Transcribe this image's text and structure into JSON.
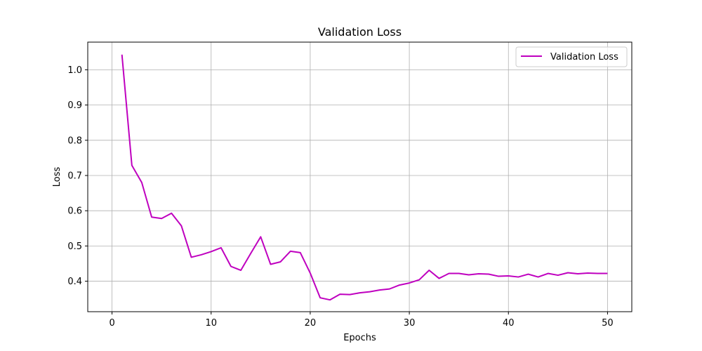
{
  "chart_data": {
    "type": "line",
    "title": "Validation Loss",
    "xlabel": "Epochs",
    "ylabel": "Loss",
    "xlim": [
      -2.45,
      52.45
    ],
    "ylim": [
      0.3135,
      1.0785
    ],
    "xticks": [
      0,
      10,
      20,
      30,
      40,
      50
    ],
    "yticks": [
      0.4,
      0.5,
      0.6,
      0.7,
      0.8,
      0.9,
      1.0
    ],
    "grid": true,
    "legend_position": "top-right",
    "series": [
      {
        "name": "Validation Loss",
        "color": "#bf00bf",
        "x": [
          1,
          2,
          3,
          4,
          5,
          6,
          7,
          8,
          9,
          10,
          11,
          12,
          13,
          14,
          15,
          16,
          17,
          18,
          19,
          20,
          21,
          22,
          23,
          24,
          25,
          26,
          27,
          28,
          29,
          30,
          31,
          32,
          33,
          34,
          35,
          36,
          37,
          38,
          39,
          40,
          41,
          42,
          43,
          44,
          45,
          46,
          47,
          48,
          49,
          50
        ],
        "y": [
          1.043,
          0.729,
          0.68,
          0.582,
          0.578,
          0.593,
          0.557,
          0.468,
          0.475,
          0.484,
          0.495,
          0.442,
          0.431,
          0.479,
          0.526,
          0.448,
          0.455,
          0.485,
          0.481,
          0.423,
          0.353,
          0.347,
          0.363,
          0.362,
          0.367,
          0.37,
          0.375,
          0.378,
          0.389,
          0.395,
          0.404,
          0.431,
          0.408,
          0.422,
          0.422,
          0.418,
          0.421,
          0.42,
          0.414,
          0.415,
          0.412,
          0.42,
          0.412,
          0.422,
          0.417,
          0.424,
          0.421,
          0.423,
          0.422,
          0.422
        ]
      }
    ]
  }
}
